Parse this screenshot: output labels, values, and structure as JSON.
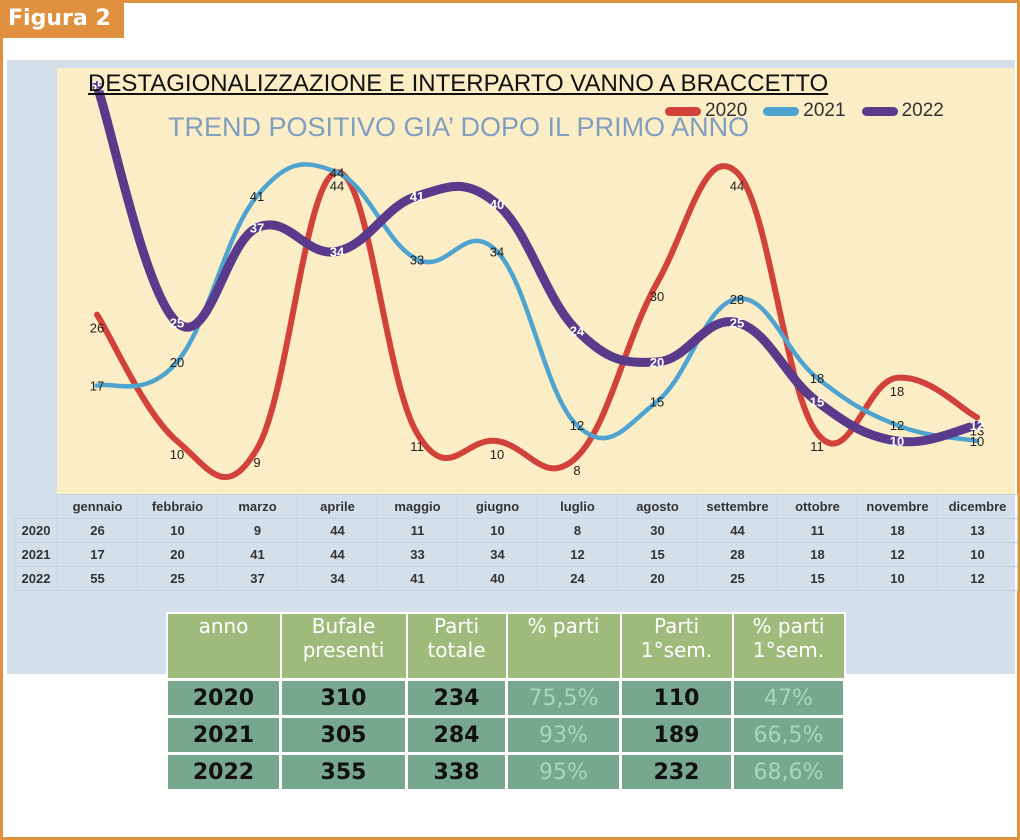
{
  "figure_label": "Figura 2",
  "chart_data": {
    "type": "line",
    "title": "DESTAGIONALIZZAZIONE E INTERPARTO VANNO A BRACCETTO",
    "subtitle": "TREND POSITIVO GIA’ DOPO IL PRIMO ANNO",
    "categories": [
      "gennaio",
      "febbraio",
      "marzo",
      "aprile",
      "maggio",
      "giugno",
      "luglio",
      "agosto",
      "settembre",
      "ottobre",
      "novembre",
      "dicembre"
    ],
    "series": [
      {
        "name": "2020",
        "color": "#d0423a",
        "values": [
          26,
          10,
          9,
          44,
          11,
          10,
          8,
          30,
          44,
          11,
          18,
          13
        ]
      },
      {
        "name": "2021",
        "color": "#4fa3d1",
        "values": [
          17,
          20,
          41,
          44,
          33,
          34,
          12,
          15,
          28,
          18,
          12,
          10
        ]
      },
      {
        "name": "2022",
        "color": "#5a3a8a",
        "values": [
          55,
          25,
          37,
          34,
          41,
          40,
          24,
          20,
          25,
          15,
          10,
          12
        ]
      }
    ],
    "ylim": [
      0,
      60
    ],
    "legend": "top-right",
    "grid": false
  },
  "summary_table": {
    "headers": [
      "anno",
      "Bufale\npresenti",
      "Parti\ntotale",
      "% parti",
      "Parti\n1°sem.",
      "% parti\n1°sem."
    ],
    "rows": [
      [
        "2020",
        "310",
        "234",
        "75,5%",
        "110",
        "47%"
      ],
      [
        "2021",
        "305",
        "284",
        "93%",
        "189",
        "66,5%"
      ],
      [
        "2022",
        "355",
        "338",
        "95%",
        "232",
        "68,6%"
      ]
    ]
  }
}
